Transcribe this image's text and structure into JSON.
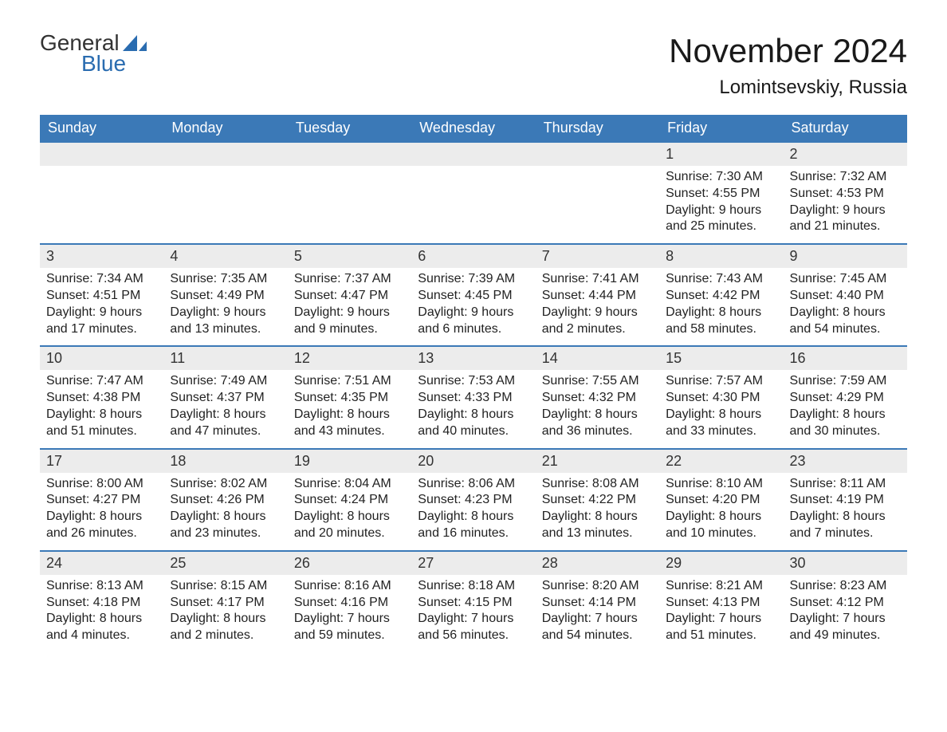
{
  "logo": {
    "part1": "General",
    "part2": "Blue"
  },
  "title": "November 2024",
  "location": "Lomintsevskiy, Russia",
  "colors": {
    "header_bg": "#3b79b7",
    "header_text": "#ffffff",
    "daynum_bg": "#ececec",
    "week_border": "#3b79b7",
    "logo_accent": "#2a6cb0",
    "text": "#222222"
  },
  "day_headers": [
    "Sunday",
    "Monday",
    "Tuesday",
    "Wednesday",
    "Thursday",
    "Friday",
    "Saturday"
  ],
  "weeks": [
    [
      null,
      null,
      null,
      null,
      null,
      {
        "n": "1",
        "sunrise": "Sunrise: 7:30 AM",
        "sunset": "Sunset: 4:55 PM",
        "d1": "Daylight: 9 hours",
        "d2": "and 25 minutes."
      },
      {
        "n": "2",
        "sunrise": "Sunrise: 7:32 AM",
        "sunset": "Sunset: 4:53 PM",
        "d1": "Daylight: 9 hours",
        "d2": "and 21 minutes."
      }
    ],
    [
      {
        "n": "3",
        "sunrise": "Sunrise: 7:34 AM",
        "sunset": "Sunset: 4:51 PM",
        "d1": "Daylight: 9 hours",
        "d2": "and 17 minutes."
      },
      {
        "n": "4",
        "sunrise": "Sunrise: 7:35 AM",
        "sunset": "Sunset: 4:49 PM",
        "d1": "Daylight: 9 hours",
        "d2": "and 13 minutes."
      },
      {
        "n": "5",
        "sunrise": "Sunrise: 7:37 AM",
        "sunset": "Sunset: 4:47 PM",
        "d1": "Daylight: 9 hours",
        "d2": "and 9 minutes."
      },
      {
        "n": "6",
        "sunrise": "Sunrise: 7:39 AM",
        "sunset": "Sunset: 4:45 PM",
        "d1": "Daylight: 9 hours",
        "d2": "and 6 minutes."
      },
      {
        "n": "7",
        "sunrise": "Sunrise: 7:41 AM",
        "sunset": "Sunset: 4:44 PM",
        "d1": "Daylight: 9 hours",
        "d2": "and 2 minutes."
      },
      {
        "n": "8",
        "sunrise": "Sunrise: 7:43 AM",
        "sunset": "Sunset: 4:42 PM",
        "d1": "Daylight: 8 hours",
        "d2": "and 58 minutes."
      },
      {
        "n": "9",
        "sunrise": "Sunrise: 7:45 AM",
        "sunset": "Sunset: 4:40 PM",
        "d1": "Daylight: 8 hours",
        "d2": "and 54 minutes."
      }
    ],
    [
      {
        "n": "10",
        "sunrise": "Sunrise: 7:47 AM",
        "sunset": "Sunset: 4:38 PM",
        "d1": "Daylight: 8 hours",
        "d2": "and 51 minutes."
      },
      {
        "n": "11",
        "sunrise": "Sunrise: 7:49 AM",
        "sunset": "Sunset: 4:37 PM",
        "d1": "Daylight: 8 hours",
        "d2": "and 47 minutes."
      },
      {
        "n": "12",
        "sunrise": "Sunrise: 7:51 AM",
        "sunset": "Sunset: 4:35 PM",
        "d1": "Daylight: 8 hours",
        "d2": "and 43 minutes."
      },
      {
        "n": "13",
        "sunrise": "Sunrise: 7:53 AM",
        "sunset": "Sunset: 4:33 PM",
        "d1": "Daylight: 8 hours",
        "d2": "and 40 minutes."
      },
      {
        "n": "14",
        "sunrise": "Sunrise: 7:55 AM",
        "sunset": "Sunset: 4:32 PM",
        "d1": "Daylight: 8 hours",
        "d2": "and 36 minutes."
      },
      {
        "n": "15",
        "sunrise": "Sunrise: 7:57 AM",
        "sunset": "Sunset: 4:30 PM",
        "d1": "Daylight: 8 hours",
        "d2": "and 33 minutes."
      },
      {
        "n": "16",
        "sunrise": "Sunrise: 7:59 AM",
        "sunset": "Sunset: 4:29 PM",
        "d1": "Daylight: 8 hours",
        "d2": "and 30 minutes."
      }
    ],
    [
      {
        "n": "17",
        "sunrise": "Sunrise: 8:00 AM",
        "sunset": "Sunset: 4:27 PM",
        "d1": "Daylight: 8 hours",
        "d2": "and 26 minutes."
      },
      {
        "n": "18",
        "sunrise": "Sunrise: 8:02 AM",
        "sunset": "Sunset: 4:26 PM",
        "d1": "Daylight: 8 hours",
        "d2": "and 23 minutes."
      },
      {
        "n": "19",
        "sunrise": "Sunrise: 8:04 AM",
        "sunset": "Sunset: 4:24 PM",
        "d1": "Daylight: 8 hours",
        "d2": "and 20 minutes."
      },
      {
        "n": "20",
        "sunrise": "Sunrise: 8:06 AM",
        "sunset": "Sunset: 4:23 PM",
        "d1": "Daylight: 8 hours",
        "d2": "and 16 minutes."
      },
      {
        "n": "21",
        "sunrise": "Sunrise: 8:08 AM",
        "sunset": "Sunset: 4:22 PM",
        "d1": "Daylight: 8 hours",
        "d2": "and 13 minutes."
      },
      {
        "n": "22",
        "sunrise": "Sunrise: 8:10 AM",
        "sunset": "Sunset: 4:20 PM",
        "d1": "Daylight: 8 hours",
        "d2": "and 10 minutes."
      },
      {
        "n": "23",
        "sunrise": "Sunrise: 8:11 AM",
        "sunset": "Sunset: 4:19 PM",
        "d1": "Daylight: 8 hours",
        "d2": "and 7 minutes."
      }
    ],
    [
      {
        "n": "24",
        "sunrise": "Sunrise: 8:13 AM",
        "sunset": "Sunset: 4:18 PM",
        "d1": "Daylight: 8 hours",
        "d2": "and 4 minutes."
      },
      {
        "n": "25",
        "sunrise": "Sunrise: 8:15 AM",
        "sunset": "Sunset: 4:17 PM",
        "d1": "Daylight: 8 hours",
        "d2": "and 2 minutes."
      },
      {
        "n": "26",
        "sunrise": "Sunrise: 8:16 AM",
        "sunset": "Sunset: 4:16 PM",
        "d1": "Daylight: 7 hours",
        "d2": "and 59 minutes."
      },
      {
        "n": "27",
        "sunrise": "Sunrise: 8:18 AM",
        "sunset": "Sunset: 4:15 PM",
        "d1": "Daylight: 7 hours",
        "d2": "and 56 minutes."
      },
      {
        "n": "28",
        "sunrise": "Sunrise: 8:20 AM",
        "sunset": "Sunset: 4:14 PM",
        "d1": "Daylight: 7 hours",
        "d2": "and 54 minutes."
      },
      {
        "n": "29",
        "sunrise": "Sunrise: 8:21 AM",
        "sunset": "Sunset: 4:13 PM",
        "d1": "Daylight: 7 hours",
        "d2": "and 51 minutes."
      },
      {
        "n": "30",
        "sunrise": "Sunrise: 8:23 AM",
        "sunset": "Sunset: 4:12 PM",
        "d1": "Daylight: 7 hours",
        "d2": "and 49 minutes."
      }
    ]
  ]
}
